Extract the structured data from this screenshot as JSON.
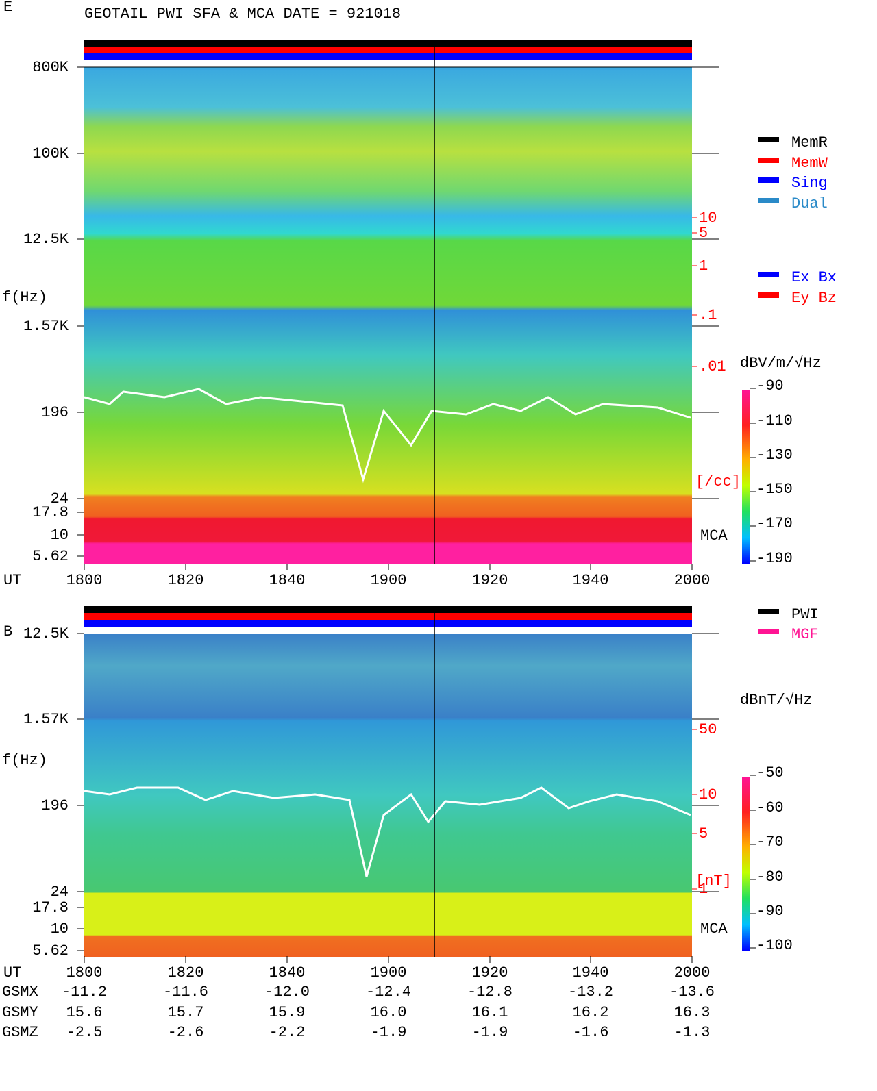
{
  "title": "GEOTAIL  PWI SFA & MCA   DATE = 921018",
  "panels": [
    {
      "label": "E",
      "y_label": "f(Hz)",
      "freq_ticks": [
        "800K",
        "100K",
        "12.5K",
        "1.57K",
        "196",
        "24",
        "17.8",
        "10",
        "5.62"
      ],
      "right_ticks": [
        "10",
        "5",
        "1",
        ".1",
        ".01"
      ],
      "right_unit": "[/cc]",
      "mca": "MCA",
      "time_label": "UT",
      "time_ticks": [
        1800,
        1820,
        1840,
        1900,
        1920,
        1940,
        2000
      ],
      "colorbar_unit": "dBV/m/√Hz",
      "colorbar_ticks": [
        -90,
        -110,
        -130,
        -150,
        -170,
        -190
      ]
    },
    {
      "label": "B",
      "y_label": "f(Hz)",
      "freq_ticks": [
        "12.5K",
        "1.57K",
        "196",
        "24",
        "17.8",
        "10",
        "5.62"
      ],
      "right_ticks": [
        "50",
        "10",
        "5",
        "1"
      ],
      "right_unit": "[nT]",
      "mca": "MCA",
      "time_label": "UT",
      "time_ticks": [
        1800,
        1820,
        1840,
        1900,
        1920,
        1940,
        2000
      ],
      "colorbar_unit": "dBnT/√Hz",
      "colorbar_ticks": [
        -50,
        -60,
        -70,
        -80,
        -90,
        -100
      ]
    }
  ],
  "legend_modes": [
    {
      "name": "MemR",
      "color": "#000000"
    },
    {
      "name": "MemW",
      "color": "#ff0000"
    },
    {
      "name": "Sing",
      "color": "#0000ff"
    },
    {
      "name": "Dual",
      "color": "#2a8ac8"
    }
  ],
  "legend_components": [
    {
      "name": "Ex Bx",
      "color": "#0000ff"
    },
    {
      "name": "Ey Bz",
      "color": "#ff0000"
    }
  ],
  "legend_sources": [
    {
      "name": "PWI",
      "color": "#000000"
    },
    {
      "name": "MGF",
      "color": "#ff1493"
    }
  ],
  "orbit": [
    {
      "label": "GSMX",
      "values": [
        "-11.2",
        "-11.6",
        "-12.0",
        "-12.4",
        "-12.8",
        "-13.2",
        "-13.6"
      ]
    },
    {
      "label": "GSMY",
      "values": [
        "15.6",
        "15.7",
        "15.9",
        "16.0",
        "16.1",
        "16.2",
        "16.3"
      ]
    },
    {
      "label": "GSMZ",
      "values": [
        "-2.5",
        "-2.6",
        "-2.2",
        "-1.9",
        "-1.9",
        "-1.6",
        "-1.3"
      ]
    }
  ]
}
